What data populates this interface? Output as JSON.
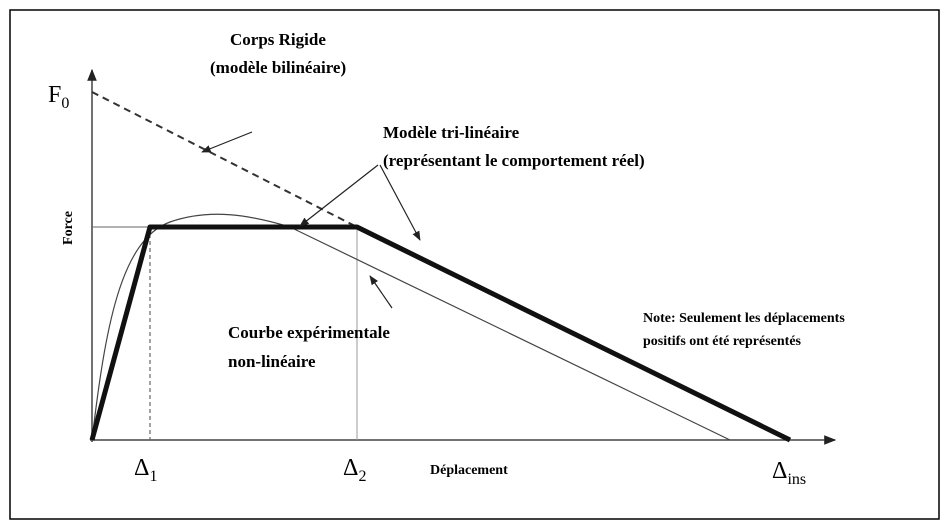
{
  "axes": {
    "y_label": "Force",
    "x_label": "Déplacement",
    "f0": {
      "main": "F",
      "sub": "0"
    },
    "delta1": {
      "main": "Δ",
      "sub": "1"
    },
    "delta2": {
      "main": "Δ",
      "sub": "2"
    },
    "delta_ins": {
      "main": "Δ",
      "sub": "ins"
    }
  },
  "annotations": {
    "rigid": [
      "Corps Rigide",
      "(modèle bilinéaire)"
    ],
    "trilinear": [
      "Modèle tri-linéaire",
      "(représentant le comportement réel)"
    ],
    "experimental": [
      "Courbe expérimentale",
      "non-linéaire"
    ],
    "note": [
      "Note: Seulement les déplacements",
      "positifs ont été représentés"
    ]
  }
}
